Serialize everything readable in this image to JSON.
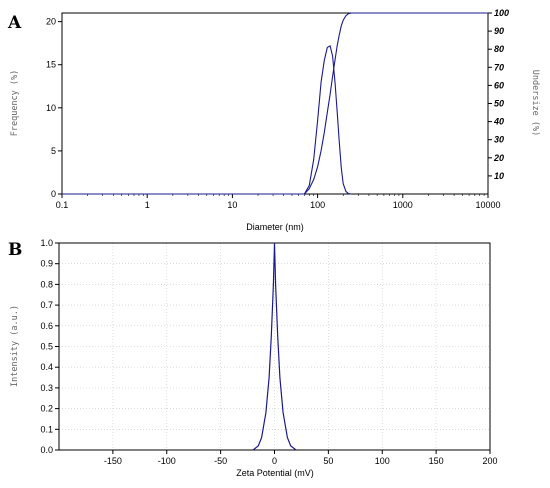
{
  "chart_data": [
    {
      "panel": "A",
      "type": "line",
      "xlabel": "Diameter (nm)",
      "ylabel": "Frequency (%)",
      "y2label": "Undersize (%)",
      "xscale": "log",
      "xlim": [
        0.1,
        10000
      ],
      "ylim": [
        0,
        21
      ],
      "y2lim": [
        0,
        100
      ],
      "xticks": [
        "0.1",
        "1",
        "10",
        "100",
        "1000",
        "10000"
      ],
      "yticks": [
        "0",
        "5",
        "10",
        "15",
        "20"
      ],
      "y2ticks": [
        "10",
        "20",
        "30",
        "40",
        "50",
        "60",
        "70",
        "80",
        "90",
        "100"
      ],
      "grid": false,
      "series": [
        {
          "axis": "left",
          "color": "#1a1a8c",
          "x": [
            0.1,
            0.3,
            70,
            80,
            90,
            100,
            110,
            120,
            130,
            140,
            150,
            160,
            170,
            180,
            190,
            200,
            215,
            230,
            250
          ],
          "y": [
            0,
            0,
            0,
            1.0,
            4.0,
            8.5,
            13.0,
            15.5,
            17.0,
            17.2,
            16.0,
            13.0,
            9.5,
            6.0,
            3.0,
            1.2,
            0.3,
            0.05,
            0
          ]
        },
        {
          "axis": "right",
          "color": "#1a1a8c",
          "x": [
            0.1,
            70,
            80,
            90,
            100,
            110,
            120,
            130,
            140,
            150,
            160,
            170,
            180,
            190,
            200,
            215,
            230,
            250,
            10000
          ],
          "y": [
            0,
            0,
            3,
            8,
            15,
            24,
            34,
            45,
            55,
            65,
            74,
            82,
            88,
            93,
            96,
            98.5,
            99.6,
            100,
            100
          ]
        }
      ]
    },
    {
      "panel": "B",
      "type": "line",
      "xlabel": "Zeta Potential (mV)",
      "ylabel": "Intensity (a.u.)",
      "xlim": [
        -200,
        200
      ],
      "ylim": [
        0,
        1.0
      ],
      "xticks": [
        "-150",
        "-100",
        "-50",
        "0",
        "50",
        "100",
        "150",
        "200"
      ],
      "yticks": [
        "0.0",
        "0.1",
        "0.2",
        "0.3",
        "0.4",
        "0.5",
        "0.6",
        "0.7",
        "0.8",
        "0.9",
        "1.0"
      ],
      "grid": true,
      "series": [
        {
          "color": "#1a1a8c",
          "x": [
            -20,
            -15,
            -12,
            -8,
            -5,
            -3,
            -1,
            0,
            1,
            3,
            5,
            8,
            12,
            15,
            20
          ],
          "y": [
            0,
            0.02,
            0.06,
            0.18,
            0.35,
            0.55,
            0.8,
            1.0,
            0.8,
            0.55,
            0.35,
            0.18,
            0.06,
            0.02,
            0
          ]
        }
      ]
    }
  ]
}
